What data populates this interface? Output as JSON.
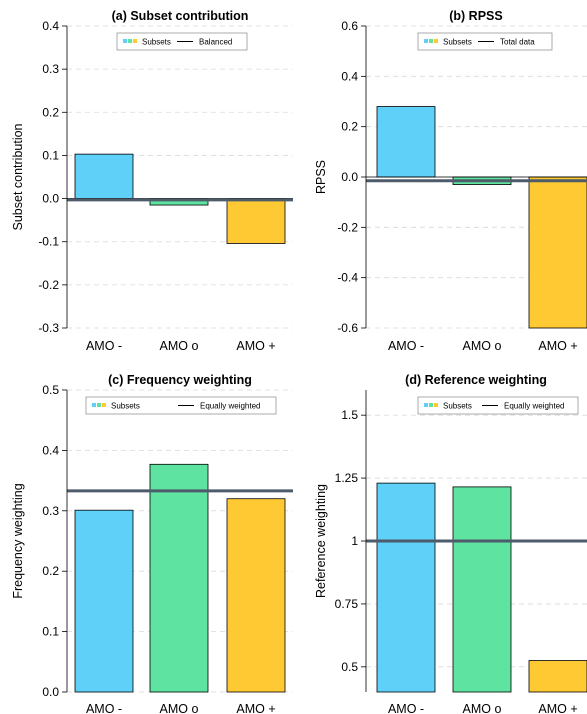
{
  "chart_data": [
    {
      "type": "bar",
      "title": "(a) Subset contribution",
      "ylabel": "Subset contribution",
      "categories": [
        "AMO -",
        "AMO o",
        "AMO +"
      ],
      "values": [
        0.103,
        -0.015,
        -0.104
      ],
      "colors": [
        "#5fd0f8",
        "#5ee3a0",
        "#ffc933"
      ],
      "reference": {
        "value": -0.003,
        "label": "Balanced"
      },
      "legend": {
        "subsets_label": "Subsets",
        "placement": "top-center"
      },
      "ylim": [
        -0.3,
        0.4
      ],
      "yticks": [
        -0.3,
        -0.2,
        -0.1,
        0.0,
        0.1,
        0.2,
        0.3,
        0.4
      ],
      "ytick_labels": [
        "-0.3",
        "-0.2",
        "-0.1",
        "0.0",
        "0.1",
        "0.2",
        "0.3",
        "0.4"
      ]
    },
    {
      "type": "bar",
      "title": "(b) RPSS",
      "ylabel": "RPSS",
      "categories": [
        "AMO -",
        "AMO o",
        "AMO +"
      ],
      "values": [
        0.28,
        -0.03,
        -0.62
      ],
      "colors": [
        "#5fd0f8",
        "#5ee3a0",
        "#ffc933"
      ],
      "reference": {
        "value": -0.015,
        "label": "Total data"
      },
      "legend": {
        "subsets_label": "Subsets",
        "placement": "top-center"
      },
      "ylim": [
        -0.6,
        0.6
      ],
      "yticks": [
        -0.6,
        -0.4,
        -0.2,
        0.0,
        0.2,
        0.4,
        0.6
      ],
      "ytick_labels": [
        "-0.6",
        "-0.4",
        "-0.2",
        "0.0",
        "0.2",
        "0.4",
        "0.6"
      ]
    },
    {
      "type": "bar",
      "title": "(c) Frequency weighting",
      "ylabel": "Frequency weighting",
      "categories": [
        "AMO -",
        "AMO o",
        "AMO +"
      ],
      "values": [
        0.301,
        0.377,
        0.32
      ],
      "colors": [
        "#5fd0f8",
        "#5ee3a0",
        "#ffc933"
      ],
      "reference": {
        "value": 0.333,
        "label": "Equally weighted"
      },
      "legend": {
        "subsets_label": "Subsets",
        "placement": "top-center"
      },
      "ylim": [
        0.0,
        0.5
      ],
      "yticks": [
        0.0,
        0.1,
        0.2,
        0.3,
        0.4,
        0.5
      ],
      "ytick_labels": [
        "0.0",
        "0.1",
        "0.2",
        "0.3",
        "0.4",
        "0.5"
      ]
    },
    {
      "type": "bar",
      "title": "(d) Reference weighting",
      "ylabel": "Reference weighting",
      "categories": [
        "AMO -",
        "AMO o",
        "AMO +"
      ],
      "values": [
        1.23,
        1.215,
        0.525
      ],
      "colors": [
        "#5fd0f8",
        "#5ee3a0",
        "#ffc933"
      ],
      "reference": {
        "value": 1.0,
        "label": "Equally weighted"
      },
      "legend": {
        "subsets_label": "Subsets",
        "placement": "top-center"
      },
      "ylim": [
        0.4,
        1.6
      ],
      "yticks": [
        0.5,
        0.75,
        1.0,
        1.25,
        1.5
      ],
      "ytick_labels": [
        "0.5",
        "0.75",
        "1",
        "1.25",
        "1.5"
      ]
    }
  ]
}
